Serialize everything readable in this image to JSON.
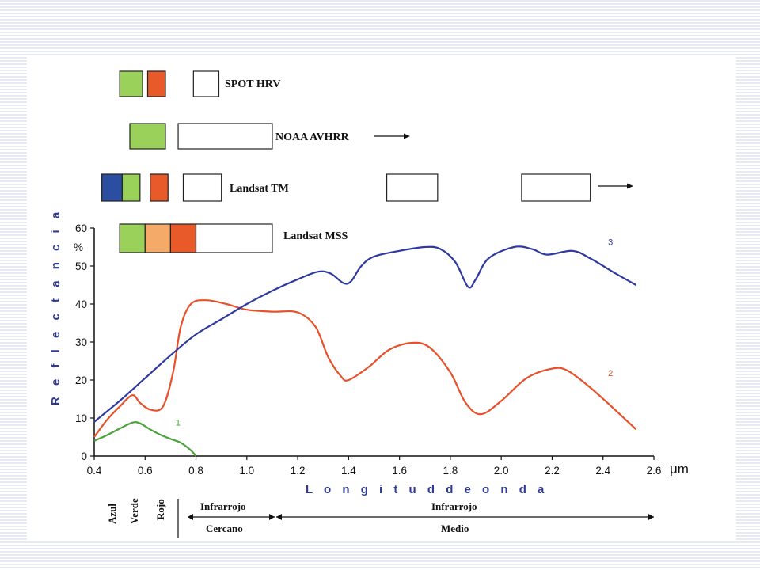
{
  "colors": {
    "blue_band": "#2b4ea0",
    "green_band": "#99d15a",
    "orange_band": "#f4ab6a",
    "red_band": "#e85a2a",
    "axis_title": "#2f3a93",
    "background_pattern": "#e8ecf4"
  },
  "sensors": [
    {
      "label": "SPOT HRV",
      "bands": [
        {
          "color": "green_band",
          "x0": 0.5,
          "x1": 0.59
        },
        {
          "color": "red_band",
          "x0": 0.61,
          "x1": 0.68
        },
        {
          "color": "white",
          "x0": 0.79,
          "x1": 0.89
        }
      ],
      "arrow": false
    },
    {
      "label": "NOAA AVHRR",
      "bands": [
        {
          "color": "green_band",
          "x0": 0.54,
          "x1": 0.68
        },
        {
          "color": "white",
          "x0": 0.73,
          "x1": 1.1
        }
      ],
      "arrow": true
    },
    {
      "label": "Landsat TM",
      "bands": [
        {
          "color": "blue_band",
          "x0": 0.43,
          "x1": 0.51
        },
        {
          "color": "green_band",
          "x0": 0.51,
          "x1": 0.58
        },
        {
          "color": "red_band",
          "x0": 0.62,
          "x1": 0.69
        },
        {
          "color": "white",
          "x0": 0.75,
          "x1": 0.9
        },
        {
          "color": "white",
          "x0": 1.55,
          "x1": 1.75
        },
        {
          "color": "white",
          "x0": 2.08,
          "x1": 2.35
        }
      ],
      "arrow": true
    },
    {
      "label": "Landsat MSS",
      "bands": [
        {
          "color": "green_band",
          "x0": 0.5,
          "x1": 0.6
        },
        {
          "color": "orange_band",
          "x0": 0.6,
          "x1": 0.7
        },
        {
          "color": "red_band",
          "x0": 0.7,
          "x1": 0.8
        },
        {
          "color": "white",
          "x0": 0.8,
          "x1": 1.1
        }
      ],
      "arrow": false
    }
  ],
  "chart_data": {
    "type": "line",
    "xlabel": "L o n g i t u d d e o n d a",
    "ylabel": "R e f l e c t a n c i a",
    "y_unit": "%",
    "x_unit": "μm",
    "xlim": [
      0.4,
      2.6
    ],
    "ylim": [
      0,
      60
    ],
    "x_ticks": [
      "0.4",
      "0.6",
      "0.8",
      "1.0",
      "1.2",
      "1.4",
      "1.6",
      "1.8",
      "2.0",
      "2.2",
      "2.4",
      "2.6"
    ],
    "y_ticks": [
      "0",
      "10",
      "20",
      "30",
      "40",
      "50",
      "60"
    ],
    "series": [
      {
        "name": "1",
        "color": "#4aa33a",
        "points": [
          [
            0.4,
            4.0
          ],
          [
            0.45,
            5.5
          ],
          [
            0.5,
            7.2
          ],
          [
            0.55,
            8.8
          ],
          [
            0.58,
            8.6
          ],
          [
            0.62,
            7.0
          ],
          [
            0.66,
            5.6
          ],
          [
            0.7,
            4.5
          ],
          [
            0.74,
            3.5
          ],
          [
            0.78,
            1.5
          ],
          [
            0.8,
            0.0
          ]
        ]
      },
      {
        "name": "2",
        "color": "#e8502a",
        "points": [
          [
            0.4,
            5.0
          ],
          [
            0.45,
            9.5
          ],
          [
            0.5,
            13.0
          ],
          [
            0.55,
            16.0
          ],
          [
            0.58,
            14.0
          ],
          [
            0.62,
            12.2
          ],
          [
            0.67,
            13.0
          ],
          [
            0.71,
            22.0
          ],
          [
            0.74,
            34.0
          ],
          [
            0.78,
            40.0
          ],
          [
            0.84,
            41.0
          ],
          [
            0.92,
            40.0
          ],
          [
            1.0,
            38.5
          ],
          [
            1.1,
            38.0
          ],
          [
            1.2,
            37.8
          ],
          [
            1.27,
            34.0
          ],
          [
            1.32,
            26.0
          ],
          [
            1.37,
            21.0
          ],
          [
            1.4,
            20.0
          ],
          [
            1.48,
            23.5
          ],
          [
            1.56,
            28.0
          ],
          [
            1.65,
            29.8
          ],
          [
            1.72,
            28.5
          ],
          [
            1.8,
            22.0
          ],
          [
            1.86,
            14.0
          ],
          [
            1.92,
            11.0
          ],
          [
            2.0,
            14.5
          ],
          [
            2.1,
            20.5
          ],
          [
            2.2,
            23.0
          ],
          [
            2.26,
            22.5
          ],
          [
            2.35,
            18.0
          ],
          [
            2.45,
            12.0
          ],
          [
            2.53,
            7.0
          ]
        ]
      },
      {
        "name": "3",
        "color": "#2f3aa0",
        "points": [
          [
            0.4,
            9.0
          ],
          [
            0.5,
            14.5
          ],
          [
            0.6,
            20.5
          ],
          [
            0.7,
            26.5
          ],
          [
            0.8,
            32.0
          ],
          [
            0.9,
            36.0
          ],
          [
            1.0,
            40.0
          ],
          [
            1.1,
            43.5
          ],
          [
            1.2,
            46.5
          ],
          [
            1.28,
            48.5
          ],
          [
            1.33,
            48.0
          ],
          [
            1.38,
            45.5
          ],
          [
            1.41,
            46.0
          ],
          [
            1.45,
            50.0
          ],
          [
            1.5,
            52.5
          ],
          [
            1.6,
            54.0
          ],
          [
            1.7,
            55.0
          ],
          [
            1.76,
            54.5
          ],
          [
            1.82,
            51.0
          ],
          [
            1.87,
            44.5
          ],
          [
            1.9,
            46.5
          ],
          [
            1.95,
            52.0
          ],
          [
            2.05,
            55.0
          ],
          [
            2.12,
            54.5
          ],
          [
            2.18,
            53.0
          ],
          [
            2.28,
            54.0
          ],
          [
            2.35,
            52.0
          ],
          [
            2.45,
            48.0
          ],
          [
            2.53,
            45.0
          ]
        ]
      }
    ]
  },
  "regions": {
    "azul": "Azul",
    "verde": "Verde",
    "rojo": "Rojo",
    "nir_top": "Infrarrojo",
    "nir_bottom": "Cercano",
    "mir_top": "Infrarrojo",
    "mir_bottom": "Medio"
  }
}
